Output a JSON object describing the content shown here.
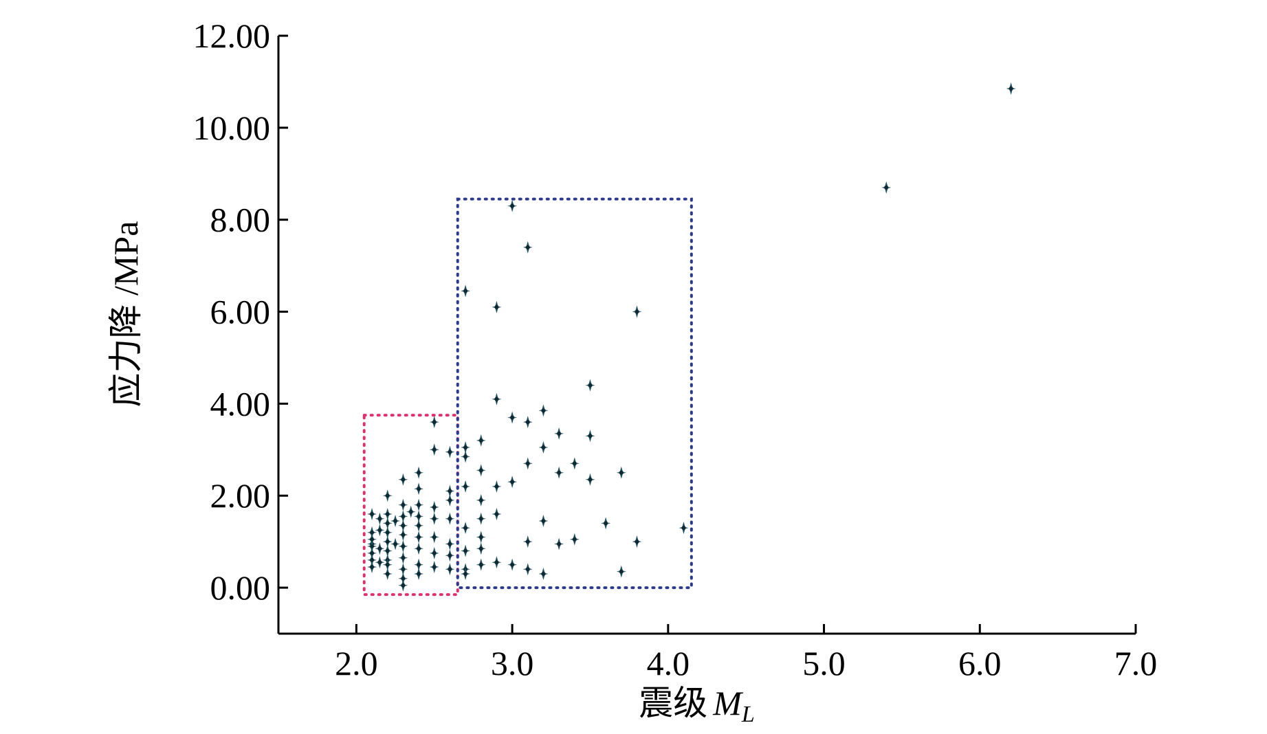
{
  "chart_data": {
    "type": "scatter",
    "title": "",
    "xlabel": "震级",
    "xlabel_symbol": "M",
    "xlabel_subscript": "L",
    "ylabel": "应力降 /MPa",
    "xlim": [
      1.5,
      7.0
    ],
    "ylim": [
      -1.0,
      12.0
    ],
    "x_ticks": [
      2.0,
      3.0,
      4.0,
      5.0,
      6.0,
      7.0
    ],
    "x_tick_labels": [
      "2.0",
      "3.0",
      "4.0",
      "5.0",
      "6.0",
      "7.0"
    ],
    "y_ticks": [
      0,
      2,
      4,
      6,
      8,
      10,
      12
    ],
    "y_tick_labels": [
      "0.00",
      "2.00",
      "4.00",
      "6.00",
      "8.00",
      "10.00",
      "12.00"
    ],
    "grid": false,
    "legend": "none",
    "point_color": "#1e4f5e",
    "regions": [
      {
        "name": "red-dotted-box",
        "color": "#e0306a",
        "x_range": [
          2.05,
          2.65
        ],
        "y_range": [
          -0.15,
          3.75
        ]
      },
      {
        "name": "blue-dotted-box",
        "color": "#2b3a8f",
        "x_range": [
          2.65,
          4.15
        ],
        "y_range": [
          0.0,
          8.45
        ]
      }
    ],
    "series": [
      {
        "values": [
          [
            2.1,
            0.95
          ],
          [
            2.1,
            0.9
          ],
          [
            2.1,
            1.2
          ],
          [
            2.1,
            1.05
          ],
          [
            2.1,
            0.75
          ],
          [
            2.1,
            0.6
          ],
          [
            2.1,
            0.45
          ],
          [
            2.1,
            1.6
          ],
          [
            2.15,
            1.5
          ],
          [
            2.15,
            1.25
          ],
          [
            2.15,
            0.85
          ],
          [
            2.15,
            0.55
          ],
          [
            2.2,
            2.0
          ],
          [
            2.2,
            1.6
          ],
          [
            2.2,
            1.4
          ],
          [
            2.2,
            1.2
          ],
          [
            2.2,
            1.0
          ],
          [
            2.2,
            0.8
          ],
          [
            2.2,
            0.6
          ],
          [
            2.2,
            0.5
          ],
          [
            2.2,
            0.3
          ],
          [
            2.25,
            1.45
          ],
          [
            2.25,
            0.95
          ],
          [
            2.3,
            2.35
          ],
          [
            2.3,
            1.8
          ],
          [
            2.3,
            1.55
          ],
          [
            2.3,
            1.35
          ],
          [
            2.3,
            1.15
          ],
          [
            2.3,
            0.9
          ],
          [
            2.3,
            0.65
          ],
          [
            2.3,
            0.4
          ],
          [
            2.3,
            0.2
          ],
          [
            2.3,
            0.05
          ],
          [
            2.35,
            1.65
          ],
          [
            2.4,
            2.5
          ],
          [
            2.4,
            2.15
          ],
          [
            2.4,
            1.8
          ],
          [
            2.4,
            1.55
          ],
          [
            2.4,
            1.35
          ],
          [
            2.4,
            1.1
          ],
          [
            2.4,
            0.85
          ],
          [
            2.4,
            0.5
          ],
          [
            2.4,
            0.3
          ],
          [
            2.5,
            3.6
          ],
          [
            2.5,
            3.0
          ],
          [
            2.5,
            1.75
          ],
          [
            2.5,
            1.5
          ],
          [
            2.5,
            1.1
          ],
          [
            2.5,
            0.75
          ],
          [
            2.5,
            0.45
          ],
          [
            2.6,
            2.95
          ],
          [
            2.6,
            2.1
          ],
          [
            2.6,
            1.9
          ],
          [
            2.6,
            1.5
          ],
          [
            2.6,
            0.95
          ],
          [
            2.6,
            0.7
          ],
          [
            2.6,
            0.4
          ],
          [
            2.7,
            6.45
          ],
          [
            2.7,
            3.05
          ],
          [
            2.7,
            2.85
          ],
          [
            2.7,
            2.2
          ],
          [
            2.7,
            1.3
          ],
          [
            2.7,
            0.8
          ],
          [
            2.7,
            0.4
          ],
          [
            2.7,
            0.3
          ],
          [
            2.8,
            3.2
          ],
          [
            2.8,
            2.55
          ],
          [
            2.8,
            1.9
          ],
          [
            2.8,
            1.5
          ],
          [
            2.8,
            1.1
          ],
          [
            2.8,
            0.85
          ],
          [
            2.8,
            0.5
          ],
          [
            2.9,
            6.1
          ],
          [
            2.9,
            4.1
          ],
          [
            2.9,
            2.2
          ],
          [
            2.9,
            1.6
          ],
          [
            2.9,
            0.55
          ],
          [
            3.0,
            8.3
          ],
          [
            3.0,
            3.7
          ],
          [
            3.0,
            2.3
          ],
          [
            3.0,
            0.5
          ],
          [
            3.1,
            7.4
          ],
          [
            3.1,
            3.6
          ],
          [
            3.1,
            2.7
          ],
          [
            3.1,
            1.0
          ],
          [
            3.1,
            0.4
          ],
          [
            3.2,
            3.85
          ],
          [
            3.2,
            3.05
          ],
          [
            3.2,
            1.45
          ],
          [
            3.2,
            0.3
          ],
          [
            3.3,
            3.35
          ],
          [
            3.3,
            2.5
          ],
          [
            3.3,
            0.95
          ],
          [
            3.4,
            2.7
          ],
          [
            3.4,
            1.05
          ],
          [
            3.5,
            4.4
          ],
          [
            3.5,
            3.3
          ],
          [
            3.5,
            2.35
          ],
          [
            3.6,
            1.4
          ],
          [
            3.7,
            2.5
          ],
          [
            3.7,
            0.35
          ],
          [
            3.8,
            6.0
          ],
          [
            3.8,
            1.0
          ],
          [
            4.1,
            1.3
          ],
          [
            5.4,
            8.7
          ],
          [
            6.2,
            10.85
          ]
        ]
      }
    ]
  }
}
